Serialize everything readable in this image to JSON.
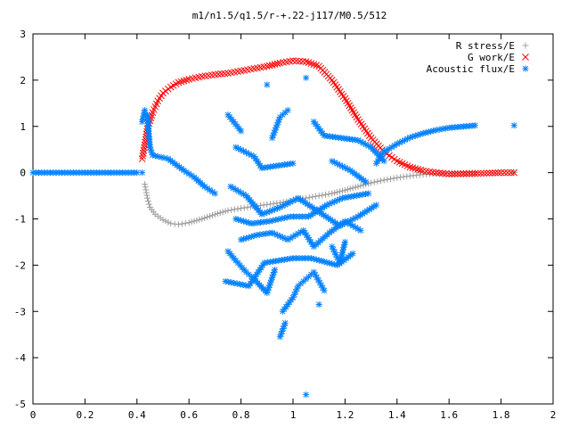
{
  "chart_data": {
    "type": "scatter",
    "title": "m1/n1.5/q1.5/r-+.22-j117/M0.5/512",
    "xlabel": "",
    "ylabel": "",
    "xlim": [
      0,
      2
    ],
    "ylim": [
      -5,
      3
    ],
    "x_ticks": [
      "0",
      "0.2",
      "0.4",
      "0.6",
      "0.8",
      "1",
      "1.2",
      "1.4",
      "1.6",
      "1.8",
      "2"
    ],
    "y_ticks": [
      "3",
      "2",
      "1",
      "0",
      "-1",
      "-2",
      "-3",
      "-4",
      "-5"
    ],
    "x_tick_values": [
      0,
      0.2,
      0.4,
      0.6,
      0.8,
      1.0,
      1.2,
      1.4,
      1.6,
      1.8,
      2.0
    ],
    "y_tick_values": [
      3,
      2,
      1,
      0,
      -1,
      -2,
      -3,
      -4,
      -5
    ],
    "grid": false,
    "legend_position": "top-right",
    "series": [
      {
        "name": "R stress/E",
        "marker": "+",
        "color": "#a0a0a0",
        "points": [
          [
            0.43,
            -0.25
          ],
          [
            0.44,
            -0.55
          ],
          [
            0.45,
            -0.75
          ],
          [
            0.47,
            -0.9
          ],
          [
            0.5,
            -1.02
          ],
          [
            0.53,
            -1.1
          ],
          [
            0.56,
            -1.12
          ],
          [
            0.6,
            -1.08
          ],
          [
            0.65,
            -1.0
          ],
          [
            0.7,
            -0.9
          ],
          [
            0.75,
            -0.82
          ],
          [
            0.8,
            -0.77
          ],
          [
            0.85,
            -0.73
          ],
          [
            0.9,
            -0.69
          ],
          [
            0.95,
            -0.65
          ],
          [
            1.0,
            -0.6
          ],
          [
            1.05,
            -0.55
          ],
          [
            1.1,
            -0.5
          ],
          [
            1.15,
            -0.45
          ],
          [
            1.2,
            -0.38
          ],
          [
            1.25,
            -0.3
          ],
          [
            1.3,
            -0.22
          ],
          [
            1.35,
            -0.16
          ],
          [
            1.4,
            -0.11
          ],
          [
            1.45,
            -0.07
          ],
          [
            1.5,
            -0.04
          ],
          [
            1.55,
            -0.02
          ],
          [
            1.6,
            -0.01
          ],
          [
            1.7,
            0.0
          ],
          [
            1.85,
            0.0
          ]
        ]
      },
      {
        "name": "G work/E",
        "marker": "x",
        "color": "#ff0000",
        "points": [
          [
            0.42,
            0.3
          ],
          [
            0.43,
            0.6
          ],
          [
            0.44,
            0.95
          ],
          [
            0.46,
            1.3
          ],
          [
            0.48,
            1.55
          ],
          [
            0.5,
            1.72
          ],
          [
            0.53,
            1.85
          ],
          [
            0.56,
            1.95
          ],
          [
            0.6,
            2.02
          ],
          [
            0.65,
            2.08
          ],
          [
            0.7,
            2.12
          ],
          [
            0.75,
            2.15
          ],
          [
            0.8,
            2.2
          ],
          [
            0.85,
            2.25
          ],
          [
            0.9,
            2.3
          ],
          [
            0.95,
            2.37
          ],
          [
            1.0,
            2.42
          ],
          [
            1.05,
            2.4
          ],
          [
            1.1,
            2.3
          ],
          [
            1.15,
            2.0
          ],
          [
            1.2,
            1.6
          ],
          [
            1.25,
            1.15
          ],
          [
            1.3,
            0.75
          ],
          [
            1.35,
            0.45
          ],
          [
            1.4,
            0.25
          ],
          [
            1.45,
            0.12
          ],
          [
            1.5,
            0.04
          ],
          [
            1.55,
            0.0
          ],
          [
            1.6,
            -0.03
          ],
          [
            1.7,
            -0.02
          ],
          [
            1.8,
            0.0
          ],
          [
            1.85,
            0.0
          ]
        ]
      },
      {
        "name": "Acoustic flux/E",
        "marker": "*",
        "color": "#0080ff",
        "points": [
          [
            0.0,
            0.0
          ],
          [
            0.1,
            0.0
          ],
          [
            0.2,
            0.0
          ],
          [
            0.3,
            0.0
          ],
          [
            0.4,
            0.0
          ],
          [
            0.42,
            0.0
          ],
          [
            0.42,
            1.1
          ],
          [
            0.43,
            1.35
          ],
          [
            0.44,
            1.25
          ],
          [
            0.45,
            0.55
          ],
          [
            0.46,
            0.38
          ],
          [
            0.48,
            0.35
          ],
          [
            0.52,
            0.3
          ],
          [
            0.58,
            0.05
          ],
          [
            0.62,
            -0.1
          ],
          [
            0.66,
            -0.3
          ],
          [
            0.7,
            -0.45
          ],
          [
            1.32,
            0.2
          ],
          [
            1.35,
            0.45
          ],
          [
            1.4,
            0.62
          ],
          [
            1.45,
            0.76
          ],
          [
            1.5,
            0.85
          ],
          [
            1.55,
            0.92
          ],
          [
            1.6,
            0.97
          ],
          [
            1.7,
            1.02
          ],
          [
            1.85,
            1.02
          ],
          [
            0.75,
            1.25
          ],
          [
            0.8,
            0.9
          ],
          [
            0.9,
            1.9
          ],
          [
            0.92,
            0.75
          ],
          [
            0.95,
            1.2
          ],
          [
            0.98,
            1.35
          ],
          [
            1.05,
            2.05
          ],
          [
            1.08,
            1.1
          ],
          [
            1.12,
            0.8
          ],
          [
            1.25,
            0.7
          ],
          [
            1.3,
            0.55
          ],
          [
            1.35,
            0.25
          ],
          [
            0.78,
            0.55
          ],
          [
            0.85,
            0.35
          ],
          [
            0.88,
            0.1
          ],
          [
            1.0,
            0.2
          ],
          [
            1.15,
            0.25
          ],
          [
            1.22,
            0.05
          ],
          [
            1.28,
            -0.2
          ],
          [
            0.76,
            -0.3
          ],
          [
            0.82,
            -0.5
          ],
          [
            0.88,
            -0.9
          ],
          [
            0.95,
            -0.75
          ],
          [
            1.02,
            -0.55
          ],
          [
            1.1,
            -0.85
          ],
          [
            1.18,
            -1.15
          ],
          [
            1.25,
            -0.95
          ],
          [
            1.32,
            -0.7
          ],
          [
            0.75,
            -1.7
          ],
          [
            0.78,
            -1.9
          ],
          [
            0.82,
            -2.15
          ],
          [
            0.85,
            -2.3
          ],
          [
            0.9,
            -2.6
          ],
          [
            0.93,
            -2.1
          ],
          [
            0.96,
            -3.0
          ],
          [
            1.0,
            -2.7
          ],
          [
            1.02,
            -2.45
          ],
          [
            1.05,
            -2.3
          ],
          [
            1.08,
            -2.15
          ],
          [
            1.12,
            -2.55
          ],
          [
            1.15,
            -1.6
          ],
          [
            1.18,
            -1.95
          ],
          [
            1.2,
            -1.5
          ],
          [
            0.95,
            -3.55
          ],
          [
            0.97,
            -3.25
          ],
          [
            1.05,
            -4.8
          ],
          [
            1.1,
            -2.85
          ],
          [
            0.8,
            -1.45
          ],
          [
            0.86,
            -1.35
          ],
          [
            0.92,
            -1.3
          ],
          [
            0.98,
            -1.45
          ],
          [
            1.04,
            -1.25
          ],
          [
            1.08,
            -1.6
          ],
          [
            1.14,
            -1.3
          ],
          [
            1.2,
            -1.05
          ],
          [
            1.26,
            -1.25
          ],
          [
            0.78,
            -1.0
          ],
          [
            0.84,
            -1.1
          ],
          [
            0.91,
            -1.05
          ],
          [
            0.99,
            -0.95
          ],
          [
            1.06,
            -0.95
          ],
          [
            1.13,
            -0.7
          ],
          [
            1.19,
            -0.55
          ],
          [
            1.29,
            -0.45
          ],
          [
            0.74,
            -2.35
          ],
          [
            0.83,
            -2.45
          ],
          [
            0.89,
            -1.95
          ],
          [
            1.0,
            -1.85
          ],
          [
            1.07,
            -1.85
          ],
          [
            1.17,
            -2.0
          ],
          [
            1.23,
            -1.75
          ]
        ]
      }
    ]
  }
}
